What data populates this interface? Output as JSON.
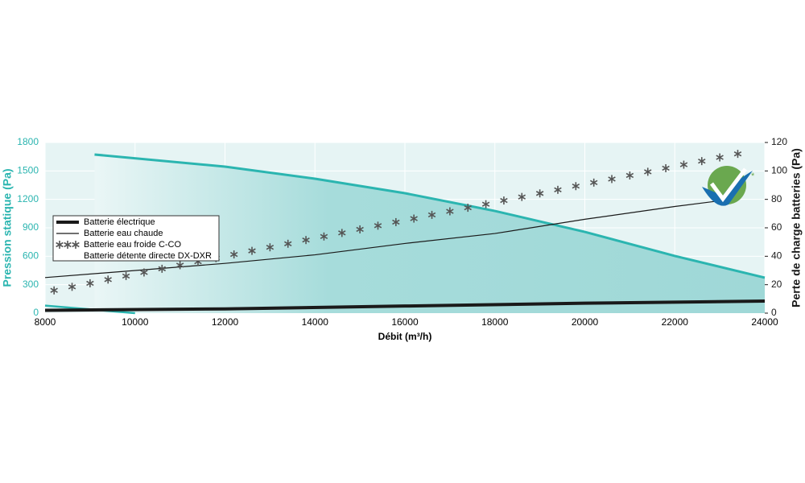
{
  "chart_data": {
    "type": "line",
    "x_label": "Débit (m³/h)",
    "y_label": "Pression statique (Pa)",
    "y2_label": "Perte de charge batteries (Pa)",
    "xlim": [
      8000,
      24000
    ],
    "xticks": [
      8000,
      10000,
      12000,
      14000,
      16000,
      18000,
      20000,
      22000,
      24000
    ],
    "ylim": [
      0,
      1800
    ],
    "yticks": [
      0,
      300,
      600,
      900,
      1200,
      1500,
      1800
    ],
    "y2lim": [
      0,
      120
    ],
    "y2ticks": [
      0,
      20,
      40,
      60,
      80,
      100,
      120
    ],
    "grid": true,
    "legend_position": "center left",
    "legend_note": "Batterie détente directe DX-DXR",
    "series": [
      {
        "color": "#2bb5b0",
        "fill": true,
        "axis": "y",
        "x": [
          9100,
          12000,
          14000,
          16000,
          18000,
          20000,
          22000,
          24000
        ],
        "values": [
          1673,
          1545,
          1418,
          1265,
          1078,
          857,
          603,
          374
        ]
      },
      {
        "color": "#2bb5b0",
        "axis": "y",
        "x": [
          8000,
          9000,
          10000
        ],
        "values": [
          80,
          40,
          0
        ]
      },
      {
        "name": "Batterie électrique",
        "color": "#1a1a1a",
        "line_width": 4,
        "axis": "y2",
        "x": [
          8000,
          12000,
          16000,
          20000,
          24000
        ],
        "values": [
          2,
          3,
          5,
          7,
          8.5
        ]
      },
      {
        "name": "Batterie eau chaude",
        "color": "#1a1a1a",
        "line_width": 1.2,
        "axis": "y2",
        "x": [
          8000,
          12000,
          14000,
          16000,
          18000,
          20000,
          22000,
          23000
        ],
        "values": [
          25,
          35,
          41,
          49,
          56,
          66,
          75,
          79
        ]
      },
      {
        "name": "Batterie eau froide C-CO",
        "color": "#555555",
        "marker": "snowflake",
        "axis": "y2",
        "x": [
          8200,
          8600,
          9000,
          9400,
          9800,
          10200,
          10600,
          11000,
          11400,
          11800,
          12200,
          12600,
          13000,
          13400,
          13800,
          14200,
          14600,
          15000,
          15400,
          15800,
          16200,
          16600,
          17000,
          17400,
          17800,
          18200,
          18600,
          19000,
          19400,
          19800,
          20200,
          20600,
          21000,
          21400,
          21800,
          22200,
          22600,
          23000,
          23400
        ],
        "values": [
          16,
          18.5,
          21,
          23.6,
          26.1,
          28.6,
          31.2,
          33.7,
          36.2,
          38.7,
          41.3,
          43.8,
          46.3,
          48.8,
          51.4,
          53.9,
          56.4,
          58.9,
          61.5,
          64,
          66.5,
          69.1,
          71.6,
          74.1,
          76.6,
          79.2,
          81.7,
          84.2,
          86.7,
          89.3,
          91.8,
          94.3,
          96.8,
          99.4,
          101.9,
          104.4,
          106.9,
          109.5,
          112
        ]
      }
    ]
  }
}
